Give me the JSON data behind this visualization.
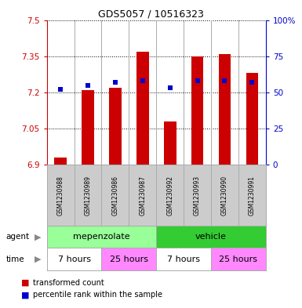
{
  "title": "GDS5057 / 10516323",
  "samples": [
    "GSM1230988",
    "GSM1230989",
    "GSM1230986",
    "GSM1230987",
    "GSM1230992",
    "GSM1230993",
    "GSM1230990",
    "GSM1230991"
  ],
  "red_values": [
    6.93,
    7.21,
    7.22,
    7.37,
    7.08,
    7.35,
    7.36,
    7.28
  ],
  "blue_values": [
    52,
    55,
    57,
    58,
    53,
    58,
    58,
    57
  ],
  "ylim": [
    6.9,
    7.5
  ],
  "yticks": [
    6.9,
    7.05,
    7.2,
    7.35,
    7.5
  ],
  "y2ticks": [
    0,
    25,
    50,
    75,
    100
  ],
  "y2lim": [
    0,
    100
  ],
  "red_color": "#cc0000",
  "blue_color": "#0000cc",
  "bar_bottom": 6.9,
  "agent_labels": [
    "mepenzolate",
    "vehicle"
  ],
  "time_labels": [
    "7 hours",
    "25 hours",
    "7 hours",
    "25 hours"
  ],
  "agent_color_light": "#99ff99",
  "agent_color_dark": "#33cc33",
  "time_color_white": "#ffffff",
  "time_color_pink": "#ff88ff",
  "separator_color": "#aaaaaa",
  "bg_color": "#cccccc",
  "plot_bg": "#ffffff",
  "legend_red": "transformed count",
  "legend_blue": "percentile rank within the sample",
  "title_fontsize": 9,
  "tick_fontsize": 7.5,
  "label_fontsize": 7,
  "bar_width": 0.45
}
